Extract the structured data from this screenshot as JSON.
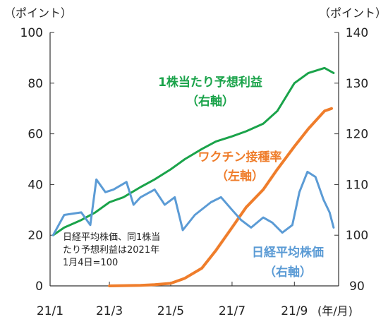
{
  "chart_data": {
    "type": "line",
    "left_axis": {
      "unit": "（ポイント）",
      "ylim": [
        0,
        100
      ],
      "ticks": [
        0,
        20,
        40,
        60,
        80,
        100
      ]
    },
    "right_axis": {
      "unit": "（ポイント）",
      "ylim": [
        90,
        140
      ],
      "ticks": [
        90,
        100,
        110,
        120,
        130,
        140
      ]
    },
    "x_axis": {
      "unit": "(年/月)",
      "range": [
        "2021-01-01",
        "2021-10-15"
      ],
      "ticks": [
        {
          "date": "2021-01-01",
          "label": "21/1"
        },
        {
          "date": "2021-03-01",
          "label": "21/3"
        },
        {
          "date": "2021-05-01",
          "label": "21/5"
        },
        {
          "date": "2021-07-01",
          "label": "21/7"
        },
        {
          "date": "2021-09-01",
          "label": "21/9"
        }
      ]
    },
    "grid": false,
    "series": [
      {
        "name": "1株当たり予想利益",
        "axis_note": "（右軸）",
        "axis": "right",
        "color": "#1aa34a",
        "points": [
          [
            "2021-01-04",
            100.0
          ],
          [
            "2021-01-15",
            101.5
          ],
          [
            "2021-02-01",
            103.0
          ],
          [
            "2021-02-15",
            104.5
          ],
          [
            "2021-03-01",
            106.5
          ],
          [
            "2021-03-15",
            107.5
          ],
          [
            "2021-04-01",
            109.5
          ],
          [
            "2021-04-15",
            111.0
          ],
          [
            "2021-05-01",
            113.0
          ],
          [
            "2021-05-15",
            115.0
          ],
          [
            "2021-06-01",
            117.0
          ],
          [
            "2021-06-15",
            118.5
          ],
          [
            "2021-07-01",
            119.5
          ],
          [
            "2021-07-15",
            120.5
          ],
          [
            "2021-08-01",
            122.0
          ],
          [
            "2021-08-15",
            124.5
          ],
          [
            "2021-09-01",
            130.0
          ],
          [
            "2021-09-15",
            132.0
          ],
          [
            "2021-10-01",
            133.0
          ],
          [
            "2021-10-10",
            132.0
          ]
        ]
      },
      {
        "name": "ワクチン接種率",
        "axis_note": "（左軸）",
        "axis": "left",
        "color": "#ef7d2b",
        "points": [
          [
            "2021-03-01",
            0.0
          ],
          [
            "2021-04-01",
            0.2
          ],
          [
            "2021-04-15",
            0.5
          ],
          [
            "2021-05-01",
            1.0
          ],
          [
            "2021-05-15",
            3.0
          ],
          [
            "2021-06-01",
            7.0
          ],
          [
            "2021-06-15",
            14.0
          ],
          [
            "2021-07-01",
            23.0
          ],
          [
            "2021-07-15",
            31.0
          ],
          [
            "2021-08-01",
            38.0
          ],
          [
            "2021-08-15",
            46.0
          ],
          [
            "2021-09-01",
            55.0
          ],
          [
            "2021-09-15",
            62.0
          ],
          [
            "2021-10-01",
            69.0
          ],
          [
            "2021-10-08",
            70.0
          ]
        ]
      },
      {
        "name": "日経平均株価",
        "axis_note": "（右軸）",
        "axis": "right",
        "color": "#5b9bd5",
        "points": [
          [
            "2021-01-04",
            100.0
          ],
          [
            "2021-01-15",
            104.0
          ],
          [
            "2021-02-01",
            104.5
          ],
          [
            "2021-02-10",
            102.0
          ],
          [
            "2021-02-16",
            111.0
          ],
          [
            "2021-02-25",
            108.5
          ],
          [
            "2021-03-05",
            109.0
          ],
          [
            "2021-03-18",
            110.5
          ],
          [
            "2021-03-25",
            106.0
          ],
          [
            "2021-04-01",
            107.5
          ],
          [
            "2021-04-15",
            109.0
          ],
          [
            "2021-04-25",
            106.0
          ],
          [
            "2021-05-05",
            107.5
          ],
          [
            "2021-05-13",
            101.0
          ],
          [
            "2021-05-25",
            104.0
          ],
          [
            "2021-06-10",
            106.5
          ],
          [
            "2021-06-20",
            107.5
          ],
          [
            "2021-07-01",
            105.0
          ],
          [
            "2021-07-10",
            103.0
          ],
          [
            "2021-07-20",
            101.5
          ],
          [
            "2021-08-01",
            103.5
          ],
          [
            "2021-08-10",
            102.5
          ],
          [
            "2021-08-20",
            100.5
          ],
          [
            "2021-08-30",
            102.0
          ],
          [
            "2021-09-06",
            108.5
          ],
          [
            "2021-09-14",
            112.5
          ],
          [
            "2021-09-22",
            111.5
          ],
          [
            "2021-09-30",
            107.0
          ],
          [
            "2021-10-06",
            104.5
          ],
          [
            "2021-10-10",
            101.5
          ]
        ]
      }
    ],
    "annotation": [
      "日経平均株価、同1株当",
      "たり予想利益は2021年",
      "1月4日=100"
    ]
  }
}
